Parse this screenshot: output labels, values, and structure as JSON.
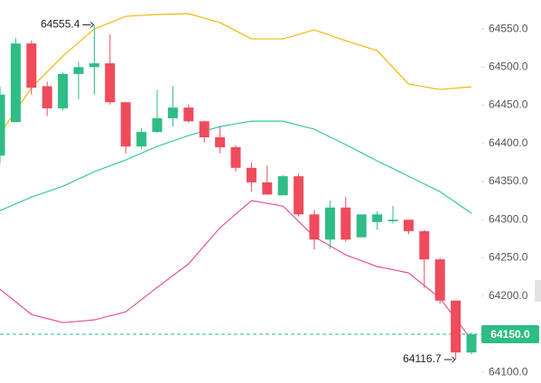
{
  "chart_data": {
    "type": "candlestick",
    "up_color": "#2ebd85",
    "down_color": "#ee4b5c",
    "ylim": [
      64086,
      64588
    ],
    "yticks": [
      {
        "value": 64100,
        "label": "64100.0"
      },
      {
        "value": 64150,
        "label": "64150.0"
      },
      {
        "value": 64200,
        "label": "64200.0"
      },
      {
        "value": 64250,
        "label": "64250.0"
      },
      {
        "value": 64300,
        "label": "64300.0"
      },
      {
        "value": 64350,
        "label": "64350.0"
      },
      {
        "value": 64400,
        "label": "64400.0"
      },
      {
        "value": 64450,
        "label": "64450.0"
      },
      {
        "value": 64500,
        "label": "64500.0"
      },
      {
        "value": 64550,
        "label": "64550.0"
      }
    ],
    "open": [
      64384,
      64428,
      64531,
      64475,
      64446,
      64491,
      64500,
      64505,
      64454,
      64396,
      64415,
      64433,
      64447,
      64429,
      64408,
      64395,
      64368,
      64349,
      64332,
      64357,
      64307,
      64274,
      64316,
      64277,
      64297,
      64298,
      64300,
      64285,
      64248,
      64194,
      64126
    ],
    "high": [
      64475,
      64538,
      64535,
      64481,
      64493,
      64507,
      64555.4,
      64543,
      64454,
      64420,
      64470,
      64475,
      64451,
      64430,
      64422,
      64398,
      64375,
      64371,
      64359,
      64361,
      64313,
      64325,
      64330,
      64307,
      64311,
      64318,
      64300,
      64287,
      64250,
      64194,
      64152
    ],
    "low": [
      64374,
      64428,
      64464,
      64436,
      64443,
      64458,
      64464,
      64451,
      64387,
      64393,
      64414,
      64422,
      64427,
      64401,
      64387,
      64363,
      64337,
      64333,
      64332,
      64304,
      64261,
      64262,
      64271,
      64277,
      64287,
      64295,
      64281,
      64211,
      64190,
      64116.7,
      64124
    ],
    "close": [
      64464,
      64531,
      64473,
      64446,
      64491,
      64500,
      64505,
      64454,
      64396,
      64415,
      64433,
      64447,
      64429,
      64408,
      64395,
      64368,
      64349,
      64333,
      64357,
      64307,
      64274,
      64316,
      64274,
      64307,
      64307,
      64300,
      64285,
      64248,
      64194,
      64126,
      64150
    ],
    "bands": [
      {
        "color": "#f0b90b",
        "values": [
          64412.6,
          64442.8,
          64473.0,
          64493.8,
          64514.5,
          64532.3,
          64550.0,
          64558.3,
          64566.6,
          64567.8,
          64568.9,
          64569.5,
          64570.1,
          64564.2,
          64558.3,
          64547.7,
          64537.0,
          64537.0,
          64537.0,
          64542.9,
          64548.8,
          64541.7,
          64534.6,
          64528.1,
          64521.6,
          64499.7,
          64477.8,
          64474.3,
          64470.7,
          64472.5,
          64474.2
        ]
      },
      {
        "color": "#37c6a0",
        "values": [
          64311.9,
          64320.8,
          64329.7,
          64336.8,
          64343.9,
          64353.4,
          64362.9,
          64370.6,
          64378.3,
          64387.2,
          64396.1,
          64403.2,
          64410.3,
          64416.2,
          64422.1,
          64425.7,
          64429.2,
          64429.2,
          64429.2,
          64423.9,
          64418.6,
          64408.5,
          64398.4,
          64387.8,
          64377.1,
          64367.1,
          64357.0,
          64346.9,
          64336.8,
          64322.6,
          64308.4
        ]
      },
      {
        "color": "#e05598",
        "values": [
          64208.9,
          64192.4,
          64175.8,
          64170.5,
          64165.1,
          64166.9,
          64168.7,
          64174.0,
          64179.3,
          64195.3,
          64211.3,
          64226.7,
          64242.1,
          64265.8,
          64289.5,
          64307.3,
          64325.0,
          64321.5,
          64317.9,
          64297.8,
          64277.6,
          64265.8,
          64253.9,
          64246.3,
          64238.6,
          64234.5,
          64230.3,
          64213.7,
          64197.1,
          64169.9,
          64142.6
        ]
      }
    ],
    "annotations": [
      {
        "index": 6,
        "value": 64555.4
      },
      {
        "index": 29,
        "value": 64116.7
      }
    ],
    "last_price": {
      "value": 64150,
      "label": "64150.0"
    }
  }
}
